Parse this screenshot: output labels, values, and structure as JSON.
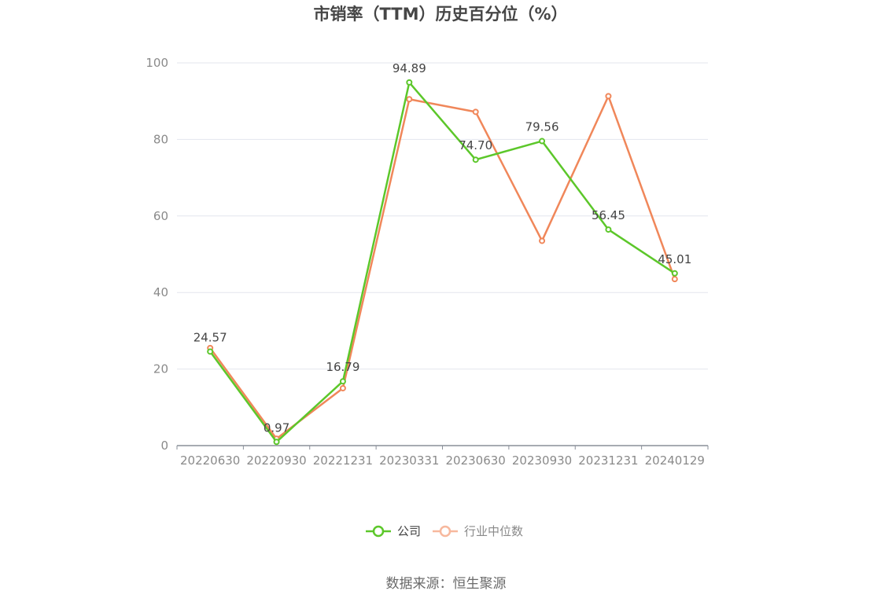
{
  "chart_data": {
    "type": "line",
    "title": "市销率（TTM）历史百分位（%）",
    "categories": [
      "20220630",
      "20220930",
      "20221231",
      "20230331",
      "20230630",
      "20230930",
      "20231231",
      "20240129"
    ],
    "series": [
      {
        "name": "公司",
        "color": "#5cc72a",
        "values": [
          24.57,
          0.97,
          16.79,
          94.89,
          74.7,
          79.56,
          56.45,
          45.01
        ],
        "labels": [
          "24.57",
          "0.97",
          "16.79",
          "94.89",
          "74.70",
          "79.56",
          "56.45",
          "45.01"
        ]
      },
      {
        "name": "行业中位数",
        "color": "#f0875a",
        "values": [
          25.5,
          1.8,
          15.0,
          90.5,
          87.2,
          53.5,
          91.3,
          43.5
        ]
      }
    ],
    "ylim": [
      0,
      100
    ],
    "yticks": [
      "0",
      "20",
      "40",
      "60",
      "80",
      "100"
    ],
    "grid": true,
    "legend_position": "bottom-center"
  },
  "source": "数据来源：恒生聚源"
}
